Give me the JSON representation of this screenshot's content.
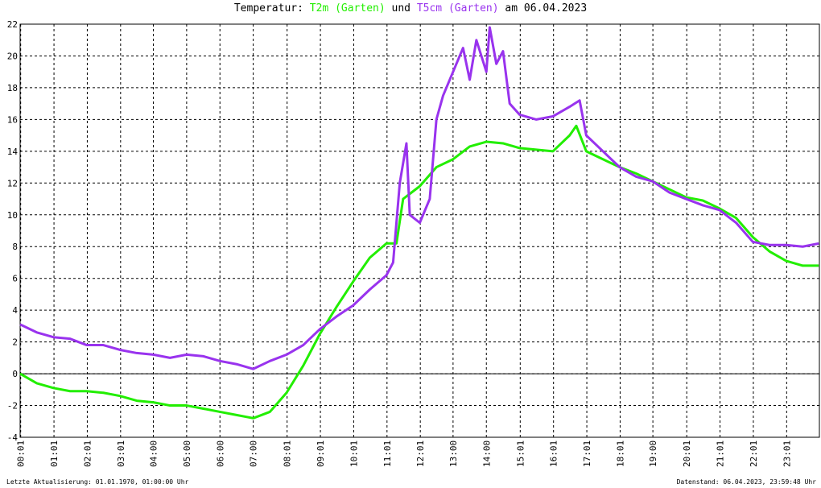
{
  "chart_data": {
    "type": "line",
    "title_parts": [
      "Temperatur:",
      "und",
      "am 06.04.2023"
    ],
    "footer_left": "Letzte Aktualisierung: 01.01.1970, 01:00:00 Uhr",
    "footer_right": "Datenstand: 06.04.2023, 23:59:48 Uhr",
    "xlim": [
      0,
      24
    ],
    "ylim": [
      -4,
      22
    ],
    "yticks": [
      -4,
      -2,
      0,
      2,
      4,
      6,
      8,
      10,
      12,
      14,
      16,
      18,
      20,
      22
    ],
    "xticks": [
      {
        "value": 0.0167,
        "label": "00:01"
      },
      {
        "value": 1.0167,
        "label": "01:01"
      },
      {
        "value": 2.0167,
        "label": "02:01"
      },
      {
        "value": 3.0167,
        "label": "03:01"
      },
      {
        "value": 4,
        "label": "04:00"
      },
      {
        "value": 5,
        "label": "05:00"
      },
      {
        "value": 6,
        "label": "06:00"
      },
      {
        "value": 7,
        "label": "07:00"
      },
      {
        "value": 8.0167,
        "label": "08:01"
      },
      {
        "value": 9.0167,
        "label": "09:01"
      },
      {
        "value": 10.0167,
        "label": "10:01"
      },
      {
        "value": 11.0167,
        "label": "11:01"
      },
      {
        "value": 12.0167,
        "label": "12:01"
      },
      {
        "value": 13,
        "label": "13:00"
      },
      {
        "value": 14,
        "label": "14:00"
      },
      {
        "value": 15.0167,
        "label": "15:01"
      },
      {
        "value": 16.0167,
        "label": "16:01"
      },
      {
        "value": 17.0167,
        "label": "17:01"
      },
      {
        "value": 18.0167,
        "label": "18:01"
      },
      {
        "value": 19,
        "label": "19:00"
      },
      {
        "value": 20.0167,
        "label": "20:01"
      },
      {
        "value": 21.0167,
        "label": "21:01"
      },
      {
        "value": 22.0167,
        "label": "22:01"
      },
      {
        "value": 23.0167,
        "label": "23:01"
      }
    ],
    "grid": true,
    "series": [
      {
        "name": "T2m (Garten)",
        "color": "#22ee00",
        "x": [
          0,
          0.5,
          1,
          1.5,
          2,
          2.5,
          3,
          3.5,
          4,
          4.5,
          5,
          5.5,
          6,
          6.5,
          7,
          7.5,
          8,
          8.5,
          9,
          9.5,
          10,
          10.5,
          11,
          11.3,
          11.5,
          12,
          12.5,
          13,
          13.5,
          14,
          14.5,
          15,
          15.5,
          16,
          16.5,
          16.7,
          17,
          17.5,
          18,
          18.5,
          19,
          19.5,
          20,
          20.5,
          21,
          21.5,
          22,
          22.5,
          23,
          23.5,
          23.98
        ],
        "values": [
          0,
          -0.6,
          -0.9,
          -1.1,
          -1.1,
          -1.2,
          -1.4,
          -1.7,
          -1.8,
          -2.0,
          -2.0,
          -2.2,
          -2.4,
          -2.6,
          -2.8,
          -2.4,
          -1.2,
          0.5,
          2.5,
          4.2,
          5.8,
          7.3,
          8.2,
          8.2,
          11.0,
          11.8,
          13.0,
          13.5,
          14.3,
          14.6,
          14.5,
          14.2,
          14.1,
          14.0,
          15.0,
          15.6,
          14.0,
          13.5,
          13.0,
          12.6,
          12.1,
          11.6,
          11.1,
          10.9,
          10.4,
          9.8,
          8.6,
          7.7,
          7.1,
          6.8,
          6.8
        ]
      },
      {
        "name": "T5cm (Garten)",
        "color": "#9933ee",
        "x": [
          0,
          0.5,
          1,
          1.5,
          2,
          2.5,
          3,
          3.5,
          4,
          4.5,
          5,
          5.5,
          6,
          6.5,
          7,
          7.5,
          8,
          8.5,
          9,
          9.5,
          10,
          10.5,
          11,
          11.2,
          11.4,
          11.6,
          11.7,
          12,
          12.3,
          12.5,
          12.7,
          13,
          13.3,
          13.5,
          13.7,
          14,
          14.1,
          14.3,
          14.5,
          14.7,
          15,
          15.5,
          16,
          16.5,
          16.8,
          17,
          17.5,
          18,
          18.5,
          19,
          19.5,
          20,
          20.5,
          21,
          21.5,
          22,
          22.5,
          23,
          23.5,
          23.98
        ],
        "values": [
          3.1,
          2.6,
          2.3,
          2.2,
          1.8,
          1.8,
          1.5,
          1.3,
          1.2,
          1.0,
          1.2,
          1.1,
          0.8,
          0.6,
          0.3,
          0.8,
          1.2,
          1.8,
          2.8,
          3.6,
          4.3,
          5.3,
          6.2,
          7.0,
          12.0,
          14.5,
          10.0,
          9.5,
          11.0,
          16.0,
          17.5,
          19.0,
          20.5,
          18.5,
          21.0,
          19.0,
          21.8,
          19.5,
          20.3,
          17.0,
          16.3,
          16.0,
          16.2,
          16.8,
          17.2,
          15.0,
          14.0,
          13.0,
          12.4,
          12.1,
          11.4,
          11.0,
          10.6,
          10.3,
          9.5,
          8.3,
          8.1,
          8.1,
          8.0,
          8.2
        ]
      }
    ]
  }
}
